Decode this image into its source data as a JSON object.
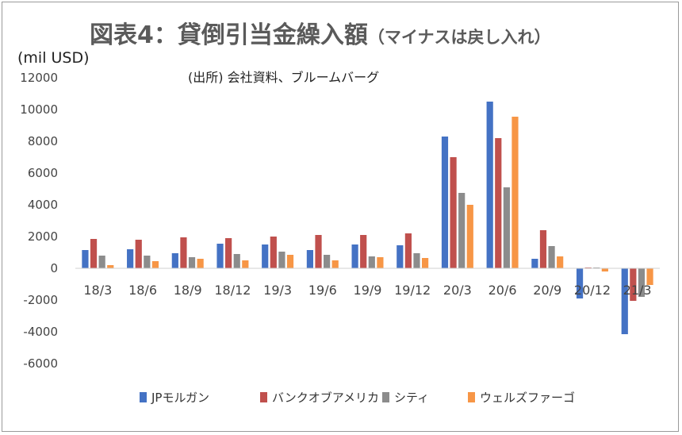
{
  "chart_data": {
    "type": "bar",
    "title": "図表4：貸倒引当金繰入額",
    "title_suffix": "（マイナスは戻し入れ）",
    "unit_label": "(mil USD)",
    "source": "(出所)  会社資料、ブルームバーグ",
    "categories": [
      "18/3",
      "18/6",
      "18/9",
      "18/12",
      "19/3",
      "19/6",
      "19/9",
      "19/12",
      "20/3",
      "20/6",
      "20/9",
      "20/12",
      "21/3"
    ],
    "ylim": [
      -6000,
      12000
    ],
    "yticks": [
      -6000,
      -4000,
      -2000,
      0,
      2000,
      4000,
      6000,
      8000,
      10000,
      12000
    ],
    "grid": false,
    "legend_position": "bottom",
    "series": [
      {
        "name": "JPモルガン",
        "color": "#4472c4",
        "values": [
          1150,
          1200,
          950,
          1550,
          1500,
          1150,
          1500,
          1450,
          8300,
          10500,
          600,
          -1900,
          -4150
        ]
      },
      {
        "name": "バンクオブアメリカ",
        "color": "#c0504d",
        "values": [
          1850,
          1800,
          1950,
          1900,
          2000,
          2100,
          2100,
          2200,
          7000,
          8200,
          2400,
          50,
          -2050
        ]
      },
      {
        "name": "シティ",
        "color": "#8c8c8c",
        "values": [
          800,
          800,
          700,
          900,
          1050,
          850,
          750,
          950,
          4750,
          5100,
          1400,
          50,
          -1800
        ]
      },
      {
        "name": "ウェルズファーゴ",
        "color": "#f79646",
        "values": [
          200,
          450,
          600,
          500,
          850,
          500,
          700,
          650,
          4000,
          9550,
          750,
          -200,
          -1050
        ]
      }
    ]
  }
}
